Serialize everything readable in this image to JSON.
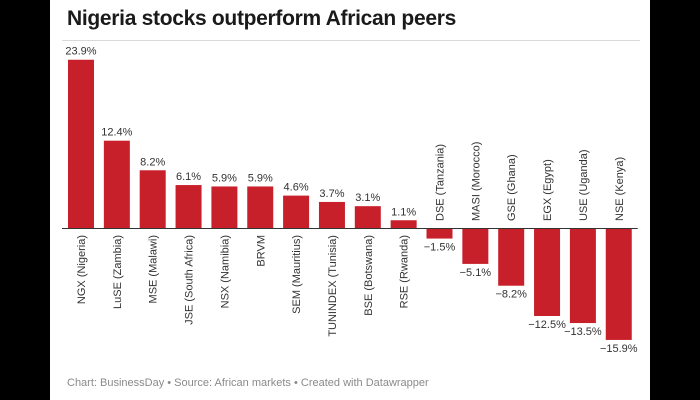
{
  "title": "Nigeria stocks outperform African peers",
  "footer": "Chart: BusinessDay • Source: African markets • Created with Datawrapper",
  "colors": {
    "bar": "#c8202a",
    "baseline": "#333333",
    "text": "#333333"
  },
  "chart_data": {
    "type": "bar",
    "title": "Nigeria stocks outperform African peers",
    "xlabel": "",
    "ylabel": "",
    "unit": "%",
    "categories": [
      "NGX (Nigeria)",
      "LuSE (Zambia)",
      "MSE (Malawi)",
      "JSE (South Africa)",
      "NSX (Namibia)",
      "BRVM",
      "SEM (Mauritius)",
      "TUNINDEX (Tunisia)",
      "BSE (Botswana)",
      "RSE (Rwanda)",
      "DSE (Tanzania)",
      "MASI (Morocco)",
      "GSE (Ghana)",
      "EGX (Egypt)",
      "USE (Uganda)",
      "NSE (Kenya)"
    ],
    "values": [
      23.9,
      12.4,
      8.2,
      6.1,
      5.9,
      5.9,
      4.6,
      3.7,
      3.1,
      1.1,
      -1.5,
      -5.1,
      -8.2,
      -12.5,
      -13.5,
      -15.9
    ],
    "labels": [
      "23.9%",
      "12.4%",
      "8.2%",
      "6.1%",
      "5.9%",
      "5.9%",
      "4.6%",
      "3.7%",
      "3.1%",
      "1.1%",
      "−1.5%",
      "−5.1%",
      "−8.2%",
      "−12.5%",
      "−13.5%",
      "−15.9%"
    ],
    "ylim": [
      -15.9,
      23.9
    ],
    "grid": false,
    "legend": "none"
  }
}
